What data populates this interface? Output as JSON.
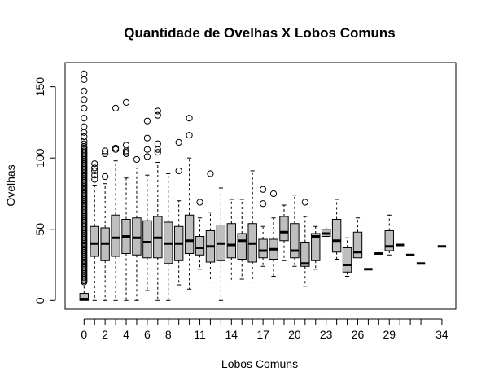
{
  "chart_data": {
    "type": "box",
    "title": "Quantidade de Ovelhas X Lobos Comuns",
    "xlabel": "Lobos Comuns",
    "ylabel": "Ovelhas",
    "x_tick_labels": [
      "0",
      "2",
      "4",
      "6",
      "8",
      "11",
      "14",
      "17",
      "20",
      "23",
      "26",
      "29",
      "34"
    ],
    "y_ticks": [
      0,
      50,
      100,
      150
    ],
    "ylim": [
      -5,
      163
    ],
    "categories": [
      "0",
      "1",
      "2",
      "3",
      "4",
      "5",
      "6",
      "7",
      "8",
      "9",
      "10",
      "11",
      "12",
      "13",
      "14",
      "15",
      "16",
      "17",
      "18",
      "19",
      "20",
      "21",
      "22",
      "23",
      "24",
      "25",
      "26",
      "27",
      "28",
      "29",
      "30",
      "31",
      "32",
      "34"
    ],
    "grid": false,
    "box_fill": "#bebebe",
    "boxes": [
      {
        "x": "0",
        "min": 0,
        "q1": 0,
        "median": 1,
        "q3": 5,
        "max": 12,
        "outliers": [
          13,
          14,
          15,
          16,
          17,
          18,
          19,
          20,
          21,
          22,
          23,
          24,
          25,
          26,
          27,
          28,
          29,
          30,
          31,
          32,
          33,
          34,
          35,
          36,
          37,
          38,
          39,
          40,
          41,
          42,
          43,
          44,
          45,
          46,
          47,
          48,
          49,
          50,
          51,
          52,
          53,
          54,
          55,
          56,
          57,
          58,
          59,
          60,
          61,
          62,
          63,
          64,
          65,
          66,
          67,
          68,
          69,
          70,
          71,
          72,
          73,
          74,
          75,
          76,
          77,
          78,
          79,
          80,
          81,
          82,
          83,
          84,
          85,
          86,
          87,
          88,
          89,
          90,
          91,
          92,
          93,
          94,
          95,
          96,
          97,
          98,
          99,
          100,
          101,
          102,
          103,
          104,
          105,
          106,
          107,
          108,
          110,
          112,
          115,
          118,
          122,
          128,
          135,
          141,
          147,
          155,
          159
        ]
      },
      {
        "x": "1",
        "min": 0,
        "q1": 31,
        "median": 40,
        "q3": 52,
        "max": 81,
        "outliers": [
          85,
          88,
          91,
          93,
          96
        ]
      },
      {
        "x": "2",
        "min": 0,
        "q1": 28,
        "median": 40,
        "q3": 51,
        "max": 82,
        "outliers": [
          87,
          103,
          105
        ]
      },
      {
        "x": "3",
        "min": 0,
        "q1": 31,
        "median": 44,
        "q3": 60,
        "max": 98,
        "outliers": [
          106,
          107,
          135
        ]
      },
      {
        "x": "4",
        "min": 0,
        "q1": 33,
        "median": 45,
        "q3": 57,
        "max": 86,
        "outliers": [
          103,
          104,
          105,
          109,
          139
        ]
      },
      {
        "x": "5",
        "min": 0,
        "q1": 32,
        "median": 44,
        "q3": 58,
        "max": 93,
        "outliers": [
          99
        ]
      },
      {
        "x": "6",
        "min": 7,
        "q1": 30,
        "median": 41,
        "q3": 56,
        "max": 88,
        "outliers": [
          101,
          106,
          114,
          126
        ]
      },
      {
        "x": "7",
        "min": 0,
        "q1": 30,
        "median": 44,
        "q3": 59,
        "max": 97,
        "outliers": [
          104,
          106,
          110,
          130,
          133
        ]
      },
      {
        "x": "8",
        "min": 0,
        "q1": 26,
        "median": 40,
        "q3": 55,
        "max": 89,
        "outliers": []
      },
      {
        "x": "9",
        "min": 11,
        "q1": 28,
        "median": 40,
        "q3": 52,
        "max": 70,
        "outliers": [
          91,
          111
        ]
      },
      {
        "x": "10",
        "min": 8,
        "q1": 33,
        "median": 42,
        "q3": 60,
        "max": 100,
        "outliers": [
          116,
          128
        ]
      },
      {
        "x": "11",
        "min": 22,
        "q1": 32,
        "median": 37,
        "q3": 45,
        "max": 58,
        "outliers": [
          69
        ]
      },
      {
        "x": "12",
        "min": 13,
        "q1": 27,
        "median": 38,
        "q3": 49,
        "max": 62,
        "outliers": [
          89
        ]
      },
      {
        "x": "13",
        "min": 0,
        "q1": 28,
        "median": 40,
        "q3": 53,
        "max": 79,
        "outliers": []
      },
      {
        "x": "14",
        "min": 13,
        "q1": 30,
        "median": 39,
        "q3": 54,
        "max": 71,
        "outliers": []
      },
      {
        "x": "15",
        "min": 15,
        "q1": 29,
        "median": 42,
        "q3": 47,
        "max": 71,
        "outliers": []
      },
      {
        "x": "16",
        "min": 13,
        "q1": 27,
        "median": 40,
        "q3": 54,
        "max": 91,
        "outliers": []
      },
      {
        "x": "17",
        "min": 24,
        "q1": 30,
        "median": 35,
        "q3": 43,
        "max": 52,
        "outliers": [
          68,
          78
        ]
      },
      {
        "x": "18",
        "min": 17,
        "q1": 29,
        "median": 36,
        "q3": 43,
        "max": 58,
        "outliers": [
          75
        ]
      },
      {
        "x": "19",
        "min": 28,
        "q1": 42,
        "median": 48,
        "q3": 59,
        "max": 67,
        "outliers": []
      },
      {
        "x": "20",
        "min": 24,
        "q1": 30,
        "median": 35,
        "q3": 54,
        "max": 74,
        "outliers": []
      },
      {
        "x": "21",
        "min": 10,
        "q1": 24,
        "median": 26,
        "q3": 41,
        "max": 59,
        "outliers": [
          69
        ]
      },
      {
        "x": "22",
        "min": 22,
        "q1": 28,
        "median": 45,
        "q3": 47,
        "max": 52,
        "outliers": []
      },
      {
        "x": "23",
        "min": 45,
        "q1": 45,
        "median": 47,
        "q3": 50,
        "max": 53,
        "outliers": []
      },
      {
        "x": "24",
        "min": 29,
        "q1": 34,
        "median": 42,
        "q3": 57,
        "max": 71,
        "outliers": []
      },
      {
        "x": "25",
        "min": 17,
        "q1": 20,
        "median": 25,
        "q3": 37,
        "max": 44,
        "outliers": []
      },
      {
        "x": "26",
        "min": 30,
        "q1": 30,
        "median": 34,
        "q3": 48,
        "max": 58,
        "outliers": []
      },
      {
        "x": "27",
        "min": 22,
        "q1": 22,
        "median": 22,
        "q3": 22,
        "max": 22,
        "outliers": []
      },
      {
        "x": "28",
        "min": 33,
        "q1": 33,
        "median": 33,
        "q3": 33,
        "max": 33,
        "outliers": []
      },
      {
        "x": "29",
        "min": 32,
        "q1": 35,
        "median": 38,
        "q3": 49,
        "max": 60,
        "outliers": []
      },
      {
        "x": "30",
        "min": 39,
        "q1": 39,
        "median": 39,
        "q3": 39,
        "max": 39,
        "outliers": []
      },
      {
        "x": "31",
        "min": 32,
        "q1": 32,
        "median": 32,
        "q3": 32,
        "max": 32,
        "outliers": []
      },
      {
        "x": "32",
        "min": 26,
        "q1": 26,
        "median": 26,
        "q3": 26,
        "max": 26,
        "outliers": []
      },
      {
        "x": "34",
        "min": 38,
        "q1": 38,
        "median": 38,
        "q3": 38,
        "max": 38,
        "outliers": []
      }
    ]
  }
}
